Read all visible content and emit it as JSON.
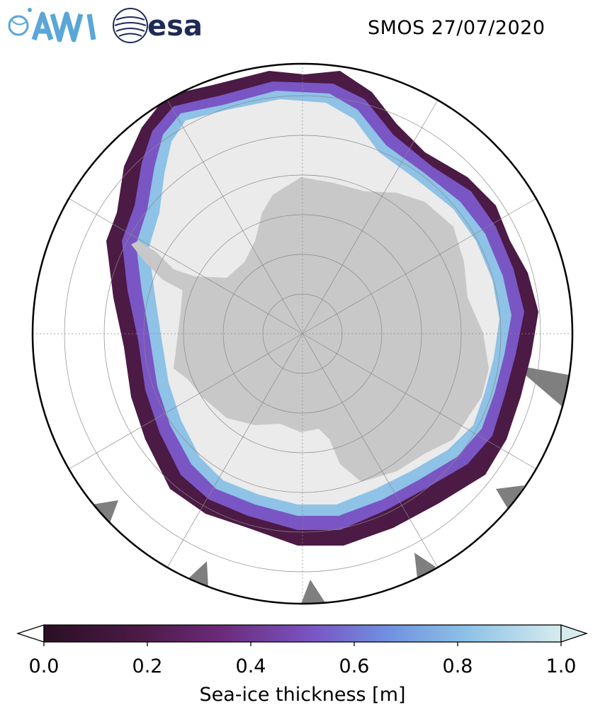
{
  "header": {
    "title": "SMOS 27/07/2020",
    "logos": [
      {
        "icon": "awi-logo-icon",
        "text": "AWI",
        "color": "#5aa6d8"
      },
      {
        "icon": "esa-logo-icon",
        "text": "esa",
        "color": "#1f2a55"
      }
    ]
  },
  "map": {
    "projection": "south-polar-stereographic",
    "colors": {
      "land": "#c8c8c8",
      "thick_ice": "#ebebeb",
      "ocean": "#ffffff",
      "no_data": "#7f7f7f",
      "graticule": "#8a8a8a"
    }
  },
  "colorbar": {
    "label": "Sea-ice thickness [m]",
    "min": 0.0,
    "max": 1.0,
    "extend": "both",
    "ticks": [
      "0.0",
      "0.2",
      "0.4",
      "0.6",
      "0.8",
      "1.0"
    ],
    "colormap": [
      "#2a0f24",
      "#4b1a45",
      "#6b2a78",
      "#7a55c4",
      "#6f8fe0",
      "#8ec2e6",
      "#d6ebee"
    ]
  }
}
